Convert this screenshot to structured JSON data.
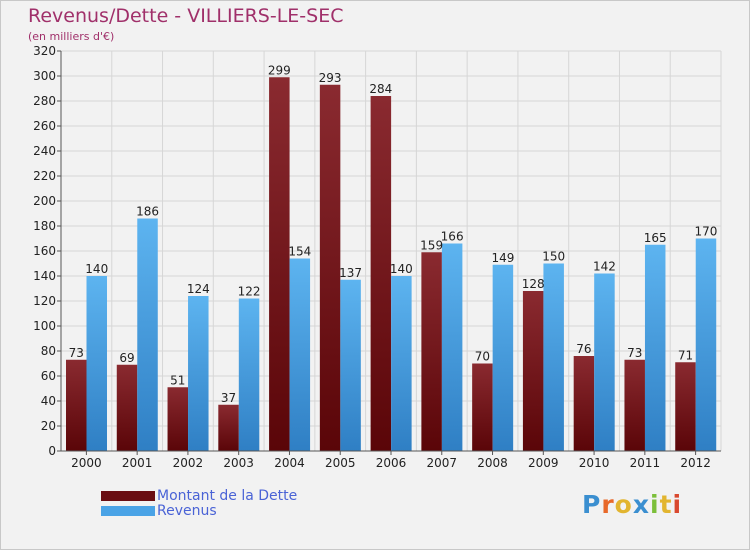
{
  "title": "Revenus/Dette - VILLIERS-LE-SEC",
  "subtitle": "(en milliers d'€)",
  "logo": {
    "text": "Proxiti",
    "letter_colors": [
      "#3b8fd0",
      "#e8692a",
      "#e2b530",
      "#3b8fd0",
      "#7cbf3a",
      "#e2b530",
      "#d9492f"
    ]
  },
  "chart_data": {
    "type": "bar",
    "categories": [
      "2000",
      "2001",
      "2002",
      "2003",
      "2004",
      "2005",
      "2006",
      "2007",
      "2008",
      "2009",
      "2010",
      "2011",
      "2012"
    ],
    "series": [
      {
        "name": "Montant de la Dette",
        "color": "#7a1a1e",
        "values": [
          73,
          69,
          51,
          37,
          299,
          293,
          284,
          159,
          70,
          128,
          76,
          73,
          71
        ]
      },
      {
        "name": "Revenus",
        "color": "#4aa3e6",
        "values": [
          140,
          186,
          124,
          122,
          154,
          137,
          140,
          166,
          149,
          150,
          142,
          165,
          170
        ]
      }
    ],
    "ylim": [
      0,
      320
    ],
    "ytick_step": 20,
    "grid": true,
    "legend": "bottom-left"
  }
}
